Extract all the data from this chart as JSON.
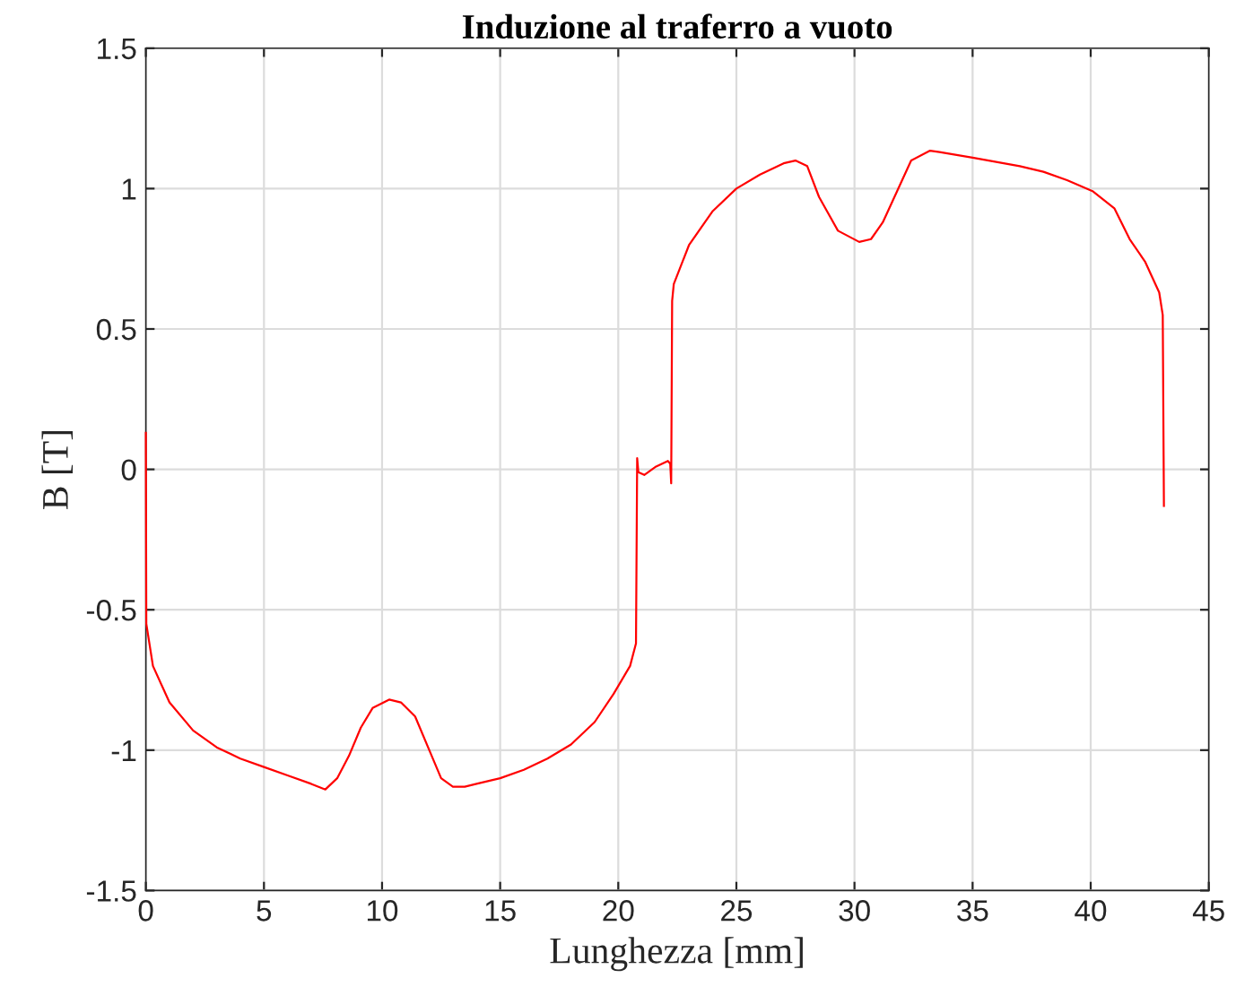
{
  "chart_data": {
    "type": "line",
    "title": "Induzione al traferro a vuoto",
    "xlabel": "Lunghezza [mm]",
    "ylabel": "B [T]",
    "xlim": [
      0,
      45
    ],
    "ylim": [
      -1.5,
      1.5
    ],
    "xticks": [
      0,
      5,
      10,
      15,
      20,
      25,
      30,
      35,
      40,
      45
    ],
    "yticks": [
      -1.5,
      -1,
      -0.5,
      0,
      0.5,
      1,
      1.5
    ],
    "grid": true,
    "line_style": "solid",
    "marker": "none",
    "series": [
      {
        "color": "#ff0000",
        "x": [
          0,
          0.02,
          0.3,
          1,
          2,
          3,
          4,
          5,
          6,
          7,
          7.6,
          8.1,
          8.6,
          9.1,
          9.6,
          10.3,
          10.8,
          11.4,
          12,
          12.5,
          13,
          13.5,
          14,
          15,
          16,
          17,
          18,
          19,
          19.8,
          20.5,
          20.75,
          20.8,
          20.85,
          21.1,
          21.6,
          22.1,
          22.2,
          22.24,
          22.28,
          22.35,
          23,
          24,
          25,
          26,
          27,
          27.5,
          28,
          28.5,
          29.3,
          30.2,
          30.7,
          31.2,
          31.8,
          32.4,
          33.2,
          33.6,
          35,
          37,
          38,
          39,
          40.1,
          41,
          41.65,
          42.3,
          42.9,
          43.05,
          43.1
        ],
        "values": [
          0.13,
          -0.55,
          -0.7,
          -0.83,
          -0.93,
          -0.99,
          -1.03,
          -1.06,
          -1.09,
          -1.12,
          -1.14,
          -1.1,
          -1.02,
          -0.92,
          -0.85,
          -0.82,
          -0.83,
          -0.88,
          -1.0,
          -1.1,
          -1.13,
          -1.13,
          -1.12,
          -1.1,
          -1.07,
          -1.03,
          -0.98,
          -0.9,
          -0.8,
          -0.7,
          -0.62,
          0.04,
          -0.01,
          -0.02,
          0.01,
          0.03,
          0.02,
          -0.05,
          0.6,
          0.66,
          0.8,
          0.92,
          1.0,
          1.05,
          1.09,
          1.1,
          1.08,
          0.97,
          0.85,
          0.81,
          0.82,
          0.88,
          0.99,
          1.1,
          1.135,
          1.13,
          1.11,
          1.08,
          1.06,
          1.03,
          0.99,
          0.93,
          0.82,
          0.74,
          0.63,
          0.55,
          -0.13
        ]
      }
    ]
  }
}
